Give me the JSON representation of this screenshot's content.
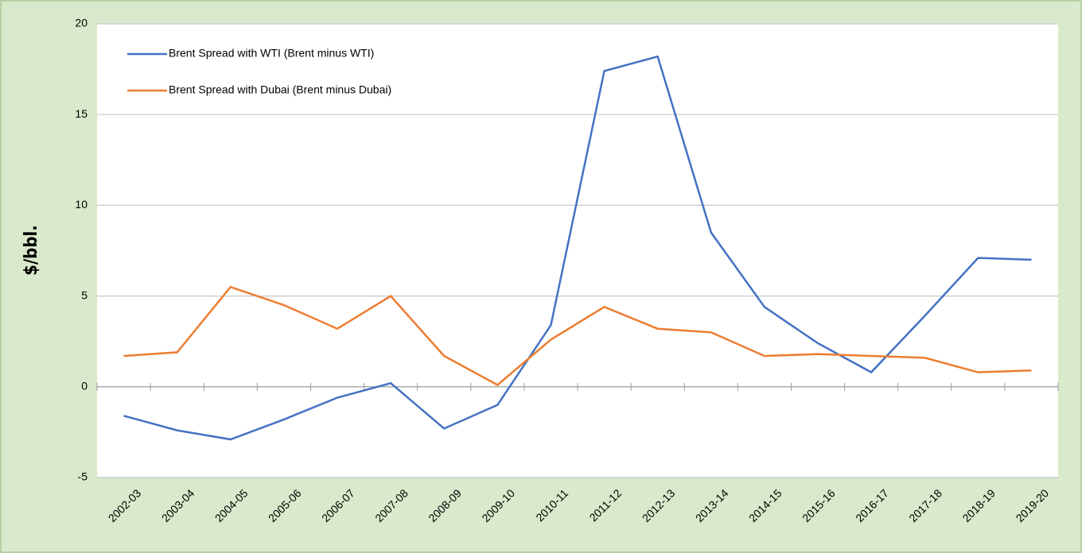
{
  "chart_data": {
    "type": "line",
    "y_label": "$/bbl.",
    "categories": [
      "2002-03",
      "2003-04",
      "2004-05",
      "2005-06",
      "2006-07",
      "2007-08",
      "2008-09",
      "2009-10",
      "2010-11",
      "2011-12",
      "2012-13",
      "2013-14",
      "2014-15",
      "2015-16",
      "2016-17",
      "2017-18",
      "2018-19",
      "2019-20"
    ],
    "series": [
      {
        "name": "Brent Spread with WTI (Brent minus WTI)",
        "color": "#4472c4",
        "values": [
          -1.6,
          -2.4,
          -2.9,
          -1.8,
          -0.6,
          0.2,
          -2.3,
          -1.0,
          3.4,
          17.4,
          18.2,
          8.5,
          4.4,
          2.4,
          0.8,
          3.9,
          7.1,
          7.0
        ]
      },
      {
        "name": "Brent Spread with Dubai (Brent minus Dubai)",
        "color": "#ed7d31",
        "values": [
          1.7,
          1.9,
          5.5,
          4.5,
          3.2,
          5.0,
          1.7,
          0.1,
          2.6,
          4.4,
          3.2,
          3.0,
          1.7,
          1.8,
          1.7,
          1.6,
          0.8,
          0.9
        ]
      }
    ],
    "ylim": [
      -5,
      20
    ],
    "yticks": [
      -5,
      0,
      5,
      10,
      15,
      20
    ],
    "grid": true,
    "legend": "top-left"
  }
}
